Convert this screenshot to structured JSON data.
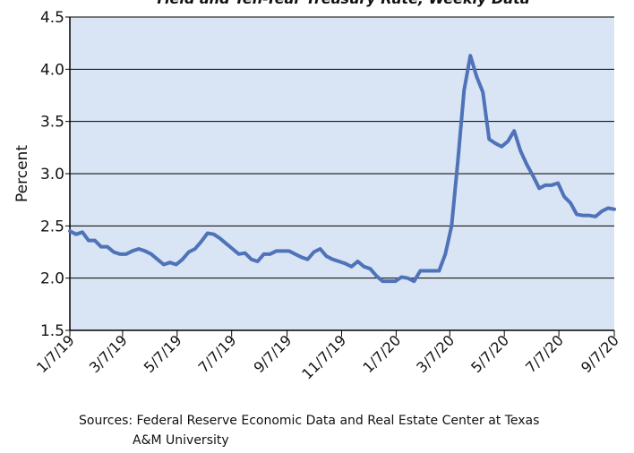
{
  "chart_data": {
    "type": "line",
    "title": "Yield and Ten-Year Treasury Rate, Weekly Data",
    "y_label": "Percent",
    "source": [
      "Sources: Federal Reserve Economic Data and Real Estate Center at Texas",
      "A&M University"
    ],
    "x": [
      "2019-01-07",
      "2019-01-14",
      "2019-01-21",
      "2019-01-28",
      "2019-02-04",
      "2019-02-11",
      "2019-02-18",
      "2019-02-25",
      "2019-03-04",
      "2019-03-11",
      "2019-03-18",
      "2019-03-25",
      "2019-04-01",
      "2019-04-08",
      "2019-04-15",
      "2019-04-22",
      "2019-04-29",
      "2019-05-06",
      "2019-05-13",
      "2019-05-20",
      "2019-05-27",
      "2019-06-03",
      "2019-06-10",
      "2019-06-17",
      "2019-06-24",
      "2019-07-01",
      "2019-07-08",
      "2019-07-15",
      "2019-07-22",
      "2019-07-29",
      "2019-08-05",
      "2019-08-12",
      "2019-08-19",
      "2019-08-26",
      "2019-09-02",
      "2019-09-09",
      "2019-09-16",
      "2019-09-23",
      "2019-09-30",
      "2019-10-07",
      "2019-10-14",
      "2019-10-21",
      "2019-10-28",
      "2019-11-04",
      "2019-11-11",
      "2019-11-18",
      "2019-11-25",
      "2019-12-02",
      "2019-12-09",
      "2019-12-16",
      "2019-12-23",
      "2019-12-30",
      "2020-01-06",
      "2020-01-13",
      "2020-01-20",
      "2020-01-27",
      "2020-02-03",
      "2020-02-10",
      "2020-02-17",
      "2020-02-24",
      "2020-03-02",
      "2020-03-09",
      "2020-03-16",
      "2020-03-23",
      "2020-03-30",
      "2020-04-06",
      "2020-04-13",
      "2020-04-20",
      "2020-04-27",
      "2020-05-04",
      "2020-05-11",
      "2020-05-18",
      "2020-05-25",
      "2020-06-01",
      "2020-06-08",
      "2020-06-15",
      "2020-06-22",
      "2020-06-29",
      "2020-07-06",
      "2020-07-13",
      "2020-07-20",
      "2020-07-27",
      "2020-08-03",
      "2020-08-10",
      "2020-08-17",
      "2020-08-24",
      "2020-08-31",
      "2020-09-07"
    ],
    "series": [
      {
        "name": "Ten-Year Treasury Rate",
        "color": "#4f73b8",
        "values": [
          2.45,
          2.42,
          2.44,
          2.36,
          2.36,
          2.3,
          2.3,
          2.25,
          2.23,
          2.23,
          2.26,
          2.28,
          2.26,
          2.23,
          2.18,
          2.13,
          2.15,
          2.13,
          2.18,
          2.25,
          2.28,
          2.35,
          2.43,
          2.42,
          2.38,
          2.33,
          2.28,
          2.23,
          2.24,
          2.18,
          2.16,
          2.23,
          2.23,
          2.26,
          2.26,
          2.26,
          2.23,
          2.2,
          2.18,
          2.25,
          2.28,
          2.21,
          2.18,
          2.16,
          2.14,
          2.11,
          2.16,
          2.11,
          2.09,
          2.02,
          1.97,
          1.97,
          1.97,
          2.01,
          2.0,
          1.97,
          2.07,
          2.07,
          2.07,
          2.07,
          2.23,
          2.5,
          3.12,
          3.8,
          4.13,
          3.93,
          3.78,
          3.33,
          3.29,
          3.26,
          3.31,
          3.41,
          3.22,
          3.09,
          2.98,
          2.86,
          2.89,
          2.89,
          2.91,
          2.78,
          2.72,
          2.61,
          2.6,
          2.6,
          2.59,
          2.64,
          2.67,
          2.66
        ]
      }
    ],
    "xlim": [
      "2019-01-07",
      "2020-09-07"
    ],
    "xticks": [
      {
        "value": "2019-01-07",
        "label": "1/7/19"
      },
      {
        "value": "2019-03-07",
        "label": "3/7/19"
      },
      {
        "value": "2019-05-07",
        "label": "5/7/19"
      },
      {
        "value": "2019-07-07",
        "label": "7/7/19"
      },
      {
        "value": "2019-09-07",
        "label": "9/7/19"
      },
      {
        "value": "2019-11-07",
        "label": "11/7/19"
      },
      {
        "value": "2020-01-07",
        "label": "1/7/20"
      },
      {
        "value": "2020-03-07",
        "label": "3/7/20"
      },
      {
        "value": "2020-05-07",
        "label": "5/7/20"
      },
      {
        "value": "2020-07-07",
        "label": "7/7/20"
      },
      {
        "value": "2020-09-07",
        "label": "9/7/20"
      }
    ],
    "ylim": [
      1.5,
      4.5
    ],
    "yticks": [
      1.5,
      {
        "value": 2,
        "label": "2.0"
      },
      2.5,
      {
        "value": 3,
        "label": "3.0"
      },
      3.5,
      {
        "value": 4,
        "label": "4.0"
      },
      4.5
    ],
    "grid": true,
    "plot_background": "#d9e4f4"
  }
}
